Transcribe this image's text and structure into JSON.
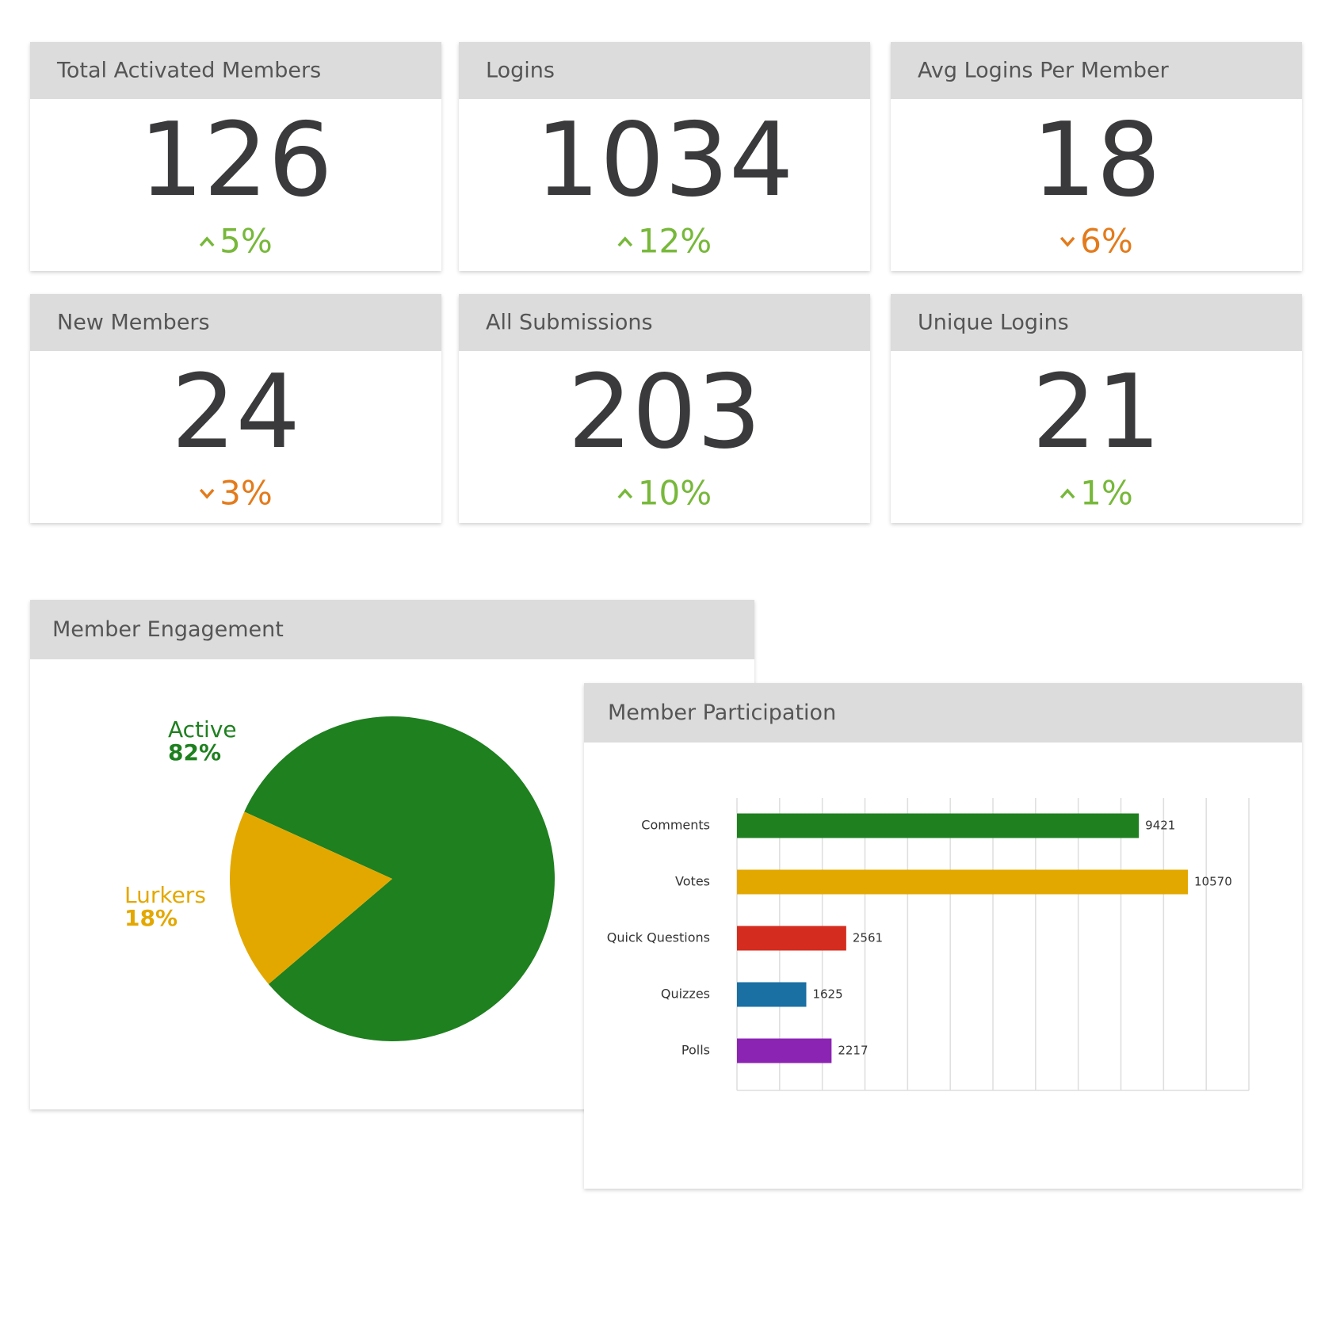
{
  "kpis": [
    {
      "title": "Total Activated Members",
      "value": 126,
      "change": "5%",
      "trend": "up"
    },
    {
      "title": "Logins",
      "value": 1034,
      "change": "12%",
      "trend": "up"
    },
    {
      "title": "Avg Logins Per Member",
      "value": 18,
      "change": "6%",
      "trend": "down"
    },
    {
      "title": "New Members",
      "value": 24,
      "change": "3%",
      "trend": "down"
    },
    {
      "title": "All Submissions",
      "value": 203,
      "change": "10%",
      "trend": "up"
    },
    {
      "title": "Unique Logins",
      "value": 21,
      "change": "1%",
      "trend": "up"
    }
  ],
  "trend_colors": {
    "up": "#77b83a",
    "down": "#e37b1c"
  },
  "chart_data": [
    {
      "type": "pie",
      "title": "Member Engagement",
      "categories": [
        "Active",
        "Lurkers"
      ],
      "values": [
        82,
        18
      ],
      "value_labels": [
        "82%",
        "18%"
      ],
      "colors": [
        "#1e801f",
        "#e3a800"
      ]
    },
    {
      "type": "bar",
      "title": "Member Participation",
      "categories": [
        "Comments",
        "Votes",
        "Quick Questions",
        "Quizzes",
        "Polls"
      ],
      "values": [
        9421,
        10570,
        2561,
        1625,
        2217
      ],
      "colors": [
        "#1e801f",
        "#e3a800",
        "#d42c1e",
        "#1a6fa3",
        "#8b24b3"
      ],
      "xlim": [
        0,
        12000
      ],
      "xticks": [
        0,
        1000,
        2000,
        3000,
        4000,
        5000,
        6000,
        7000,
        8000,
        9000,
        10000,
        11000,
        12000
      ],
      "grid": true
    }
  ]
}
